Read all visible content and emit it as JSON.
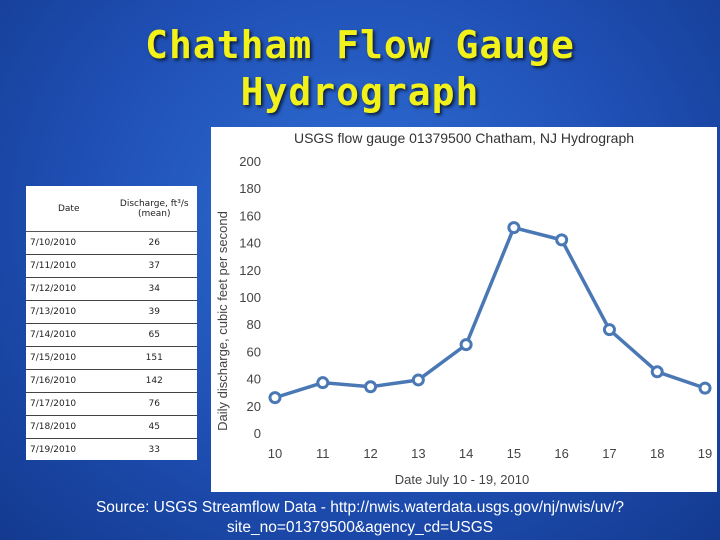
{
  "slide": {
    "title_line1": "Chatham Flow Gauge",
    "title_line2": "Hydrograph",
    "source_line1": "Source: USGS Streamflow Data - http://nwis.waterdata.usgs.gov/nj/nwis/uv/?",
    "source_line2": "site_no=01379500&agency_cd=USGS"
  },
  "table": {
    "header_date": "Date",
    "header_discharge_line1": "Discharge, ft³/s",
    "header_discharge_line2": "(mean)",
    "rows": [
      {
        "date": "7/10/2010",
        "value": "26"
      },
      {
        "date": "7/11/2010",
        "value": "37"
      },
      {
        "date": "7/12/2010",
        "value": "34"
      },
      {
        "date": "7/13/2010",
        "value": "39"
      },
      {
        "date": "7/14/2010",
        "value": "65"
      },
      {
        "date": "7/15/2010",
        "value": "151"
      },
      {
        "date": "7/16/2010",
        "value": "142"
      },
      {
        "date": "7/17/2010",
        "value": "76"
      },
      {
        "date": "7/18/2010",
        "value": "45"
      },
      {
        "date": "7/19/2010",
        "value": "33"
      }
    ]
  },
  "chart_data": {
    "type": "line",
    "title": "USGS flow gauge 01379500 Chatham, NJ Hydrograph",
    "xlabel": "Date July 10 - 19, 2010",
    "ylabel": "Daily discharge, cubic feet per second",
    "x": [
      10,
      11,
      12,
      13,
      14,
      15,
      16,
      17,
      18,
      19
    ],
    "y": [
      26,
      37,
      34,
      39,
      65,
      151,
      142,
      76,
      45,
      33
    ],
    "x_ticks": [
      "10",
      "11",
      "12",
      "13",
      "14",
      "15",
      "16",
      "17",
      "18",
      "19"
    ],
    "y_ticks": [
      0,
      20,
      40,
      60,
      80,
      100,
      120,
      140,
      160,
      180,
      200
    ],
    "ylim": [
      0,
      200
    ],
    "grid": false,
    "line_color": "#4a78b5",
    "marker_fill": "#ffffff"
  }
}
